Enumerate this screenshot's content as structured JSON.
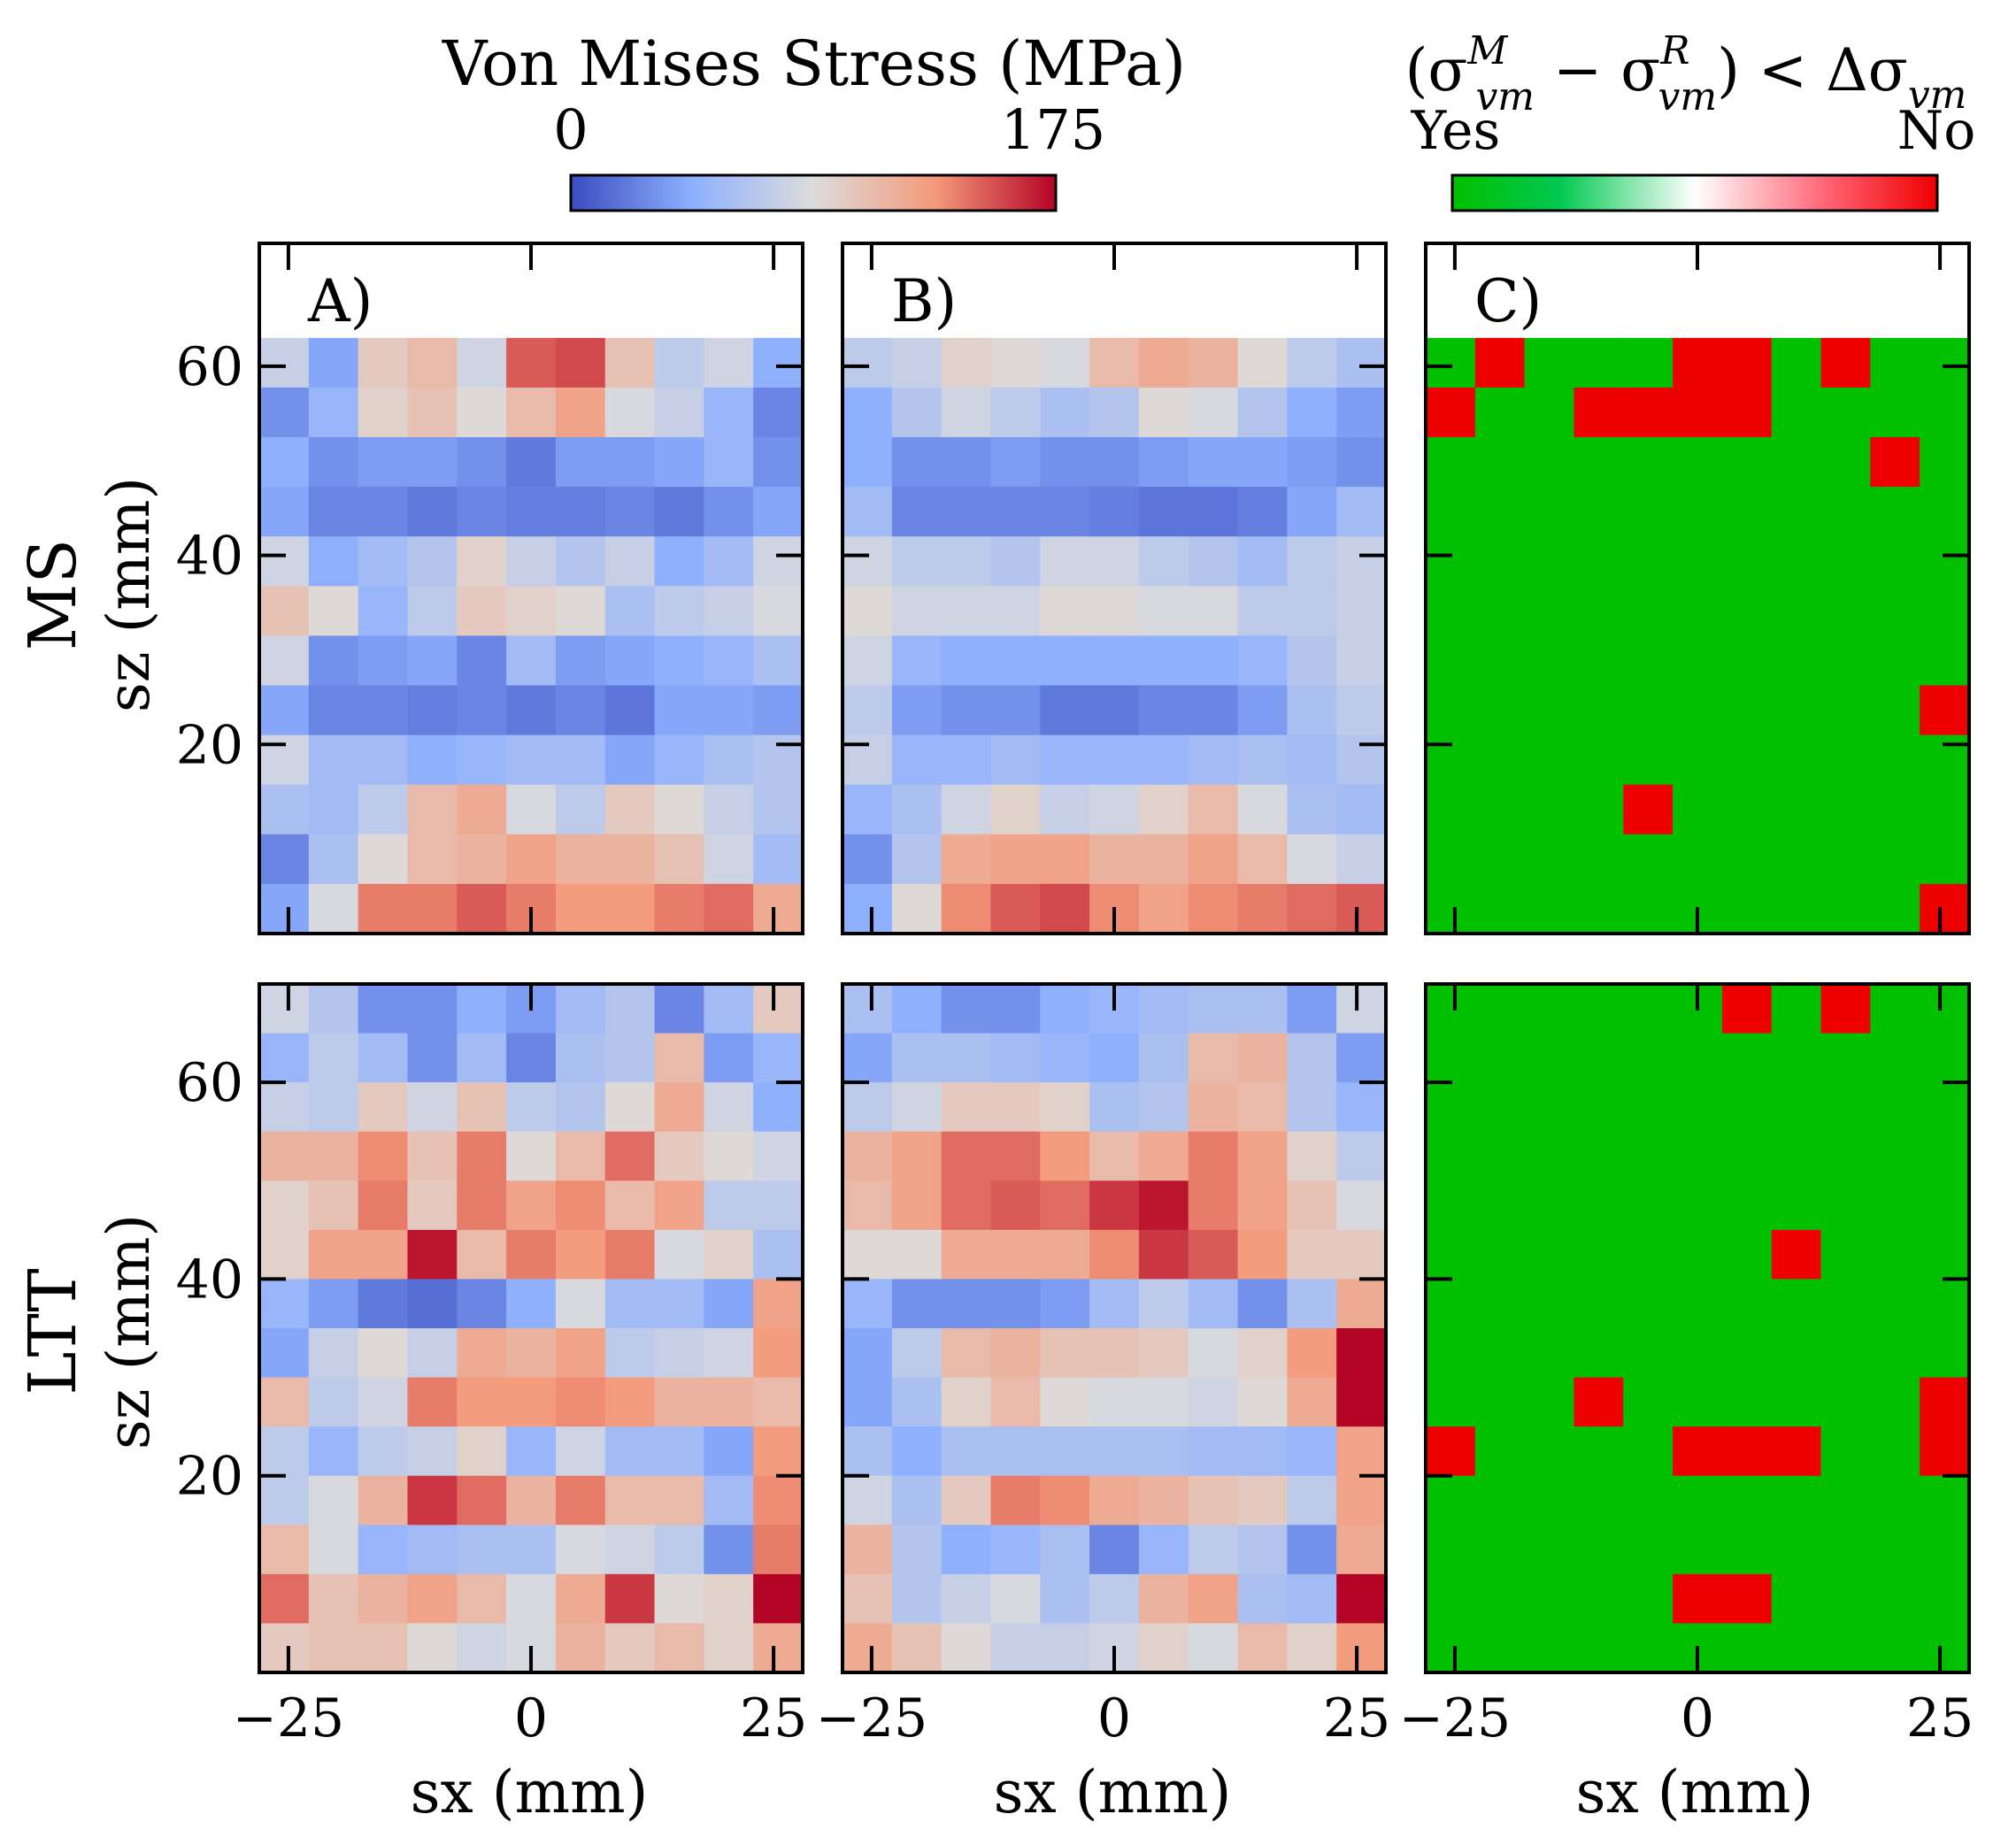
{
  "chart_data": {
    "type": "heatmap",
    "colorbar_stress": {
      "title": "Von Mises Stress (MPa)",
      "min_label": "0",
      "max_label": "175",
      "range": [
        0,
        175
      ]
    },
    "colorbar_diff": {
      "title_main": "(σ",
      "title_sup1": "M",
      "title_sub1": "vm",
      "title_mid": " − σ",
      "title_sup2": "R",
      "title_sub2": "vm",
      "title_tail": ") < Δσ",
      "title_sub3": "vm",
      "yes_label": "Yes",
      "no_label": "No"
    },
    "colors": {
      "blue": "#3b4cc0",
      "neutral": "#dddcdc",
      "red": "#b40426",
      "green": "#00c000",
      "flag_red": "#ee0000"
    },
    "x_axis": {
      "label": "sx (mm)",
      "range": [
        -28,
        28
      ],
      "ticks": [
        -25,
        0,
        25
      ],
      "tick_labels": [
        "−25",
        "0",
        "25"
      ]
    },
    "z_axis": {
      "label": "sz (mm)",
      "ticks": [
        20,
        40,
        60
      ],
      "tick_labels": [
        "20",
        "40",
        "60"
      ]
    },
    "rows": [
      {
        "name": "MS",
        "z_range": [
          0,
          73
        ],
        "data_z_top": 63
      },
      {
        "name": "LTT",
        "z_range": [
          0,
          70
        ],
        "data_z_top": 70
      }
    ],
    "panels": [
      {
        "id": "A",
        "label": "A)",
        "row": 0,
        "type": "stress",
        "grid": [
          [
            75,
            40,
            100,
            110,
            80,
            150,
            155,
            105,
            70,
            80,
            45
          ],
          [
            30,
            50,
            95,
            105,
            90,
            110,
            125,
            85,
            75,
            50,
            25
          ],
          [
            45,
            30,
            35,
            35,
            30,
            20,
            35,
            35,
            40,
            50,
            30
          ],
          [
            40,
            25,
            25,
            20,
            25,
            22,
            22,
            25,
            20,
            30,
            40
          ],
          [
            80,
            45,
            55,
            65,
            95,
            75,
            65,
            75,
            45,
            55,
            80
          ],
          [
            105,
            90,
            50,
            70,
            100,
            95,
            90,
            60,
            70,
            75,
            85
          ],
          [
            80,
            30,
            35,
            40,
            25,
            55,
            35,
            40,
            45,
            50,
            60
          ],
          [
            40,
            25,
            25,
            22,
            25,
            20,
            25,
            18,
            40,
            40,
            35
          ],
          [
            80,
            55,
            55,
            45,
            50,
            55,
            55,
            40,
            50,
            60,
            65
          ],
          [
            60,
            55,
            70,
            110,
            120,
            85,
            70,
            100,
            90,
            75,
            65
          ],
          [
            25,
            60,
            90,
            110,
            115,
            125,
            115,
            115,
            105,
            80,
            55
          ],
          [
            40,
            85,
            140,
            140,
            150,
            140,
            130,
            130,
            140,
            145,
            120
          ]
        ]
      },
      {
        "id": "B",
        "label": "B)",
        "row": 0,
        "type": "stress",
        "grid": [
          [
            70,
            75,
            95,
            90,
            85,
            110,
            120,
            115,
            90,
            70,
            60
          ],
          [
            45,
            65,
            80,
            70,
            60,
            65,
            90,
            85,
            65,
            45,
            35
          ],
          [
            45,
            30,
            30,
            35,
            30,
            30,
            35,
            40,
            40,
            35,
            30
          ],
          [
            55,
            25,
            25,
            25,
            25,
            22,
            18,
            18,
            22,
            40,
            55
          ],
          [
            80,
            70,
            70,
            65,
            80,
            80,
            70,
            65,
            55,
            70,
            75
          ],
          [
            90,
            80,
            80,
            80,
            90,
            90,
            85,
            85,
            70,
            70,
            75
          ],
          [
            80,
            50,
            45,
            45,
            45,
            45,
            45,
            45,
            50,
            65,
            75
          ],
          [
            70,
            35,
            30,
            30,
            20,
            20,
            25,
            25,
            35,
            60,
            70
          ],
          [
            75,
            50,
            50,
            55,
            50,
            50,
            50,
            55,
            60,
            55,
            65
          ],
          [
            50,
            60,
            80,
            95,
            75,
            80,
            95,
            110,
            85,
            60,
            55
          ],
          [
            30,
            65,
            120,
            125,
            125,
            115,
            115,
            125,
            110,
            85,
            75
          ],
          [
            45,
            90,
            135,
            150,
            155,
            135,
            125,
            135,
            140,
            145,
            150
          ]
        ]
      },
      {
        "id": "C",
        "label": "C)",
        "row": 0,
        "type": "flag",
        "grid": [
          [
            0,
            1,
            0,
            0,
            0,
            1,
            1,
            0,
            1,
            0,
            0
          ],
          [
            1,
            0,
            0,
            1,
            1,
            1,
            1,
            0,
            0,
            0,
            0
          ],
          [
            0,
            0,
            0,
            0,
            0,
            0,
            0,
            0,
            0,
            1,
            0
          ],
          [
            0,
            0,
            0,
            0,
            0,
            0,
            0,
            0,
            0,
            0,
            0
          ],
          [
            0,
            0,
            0,
            0,
            0,
            0,
            0,
            0,
            0,
            0,
            0
          ],
          [
            0,
            0,
            0,
            0,
            0,
            0,
            0,
            0,
            0,
            0,
            0
          ],
          [
            0,
            0,
            0,
            0,
            0,
            0,
            0,
            0,
            0,
            0,
            0
          ],
          [
            0,
            0,
            0,
            0,
            0,
            0,
            0,
            0,
            0,
            0,
            1
          ],
          [
            0,
            0,
            0,
            0,
            0,
            0,
            0,
            0,
            0,
            0,
            0
          ],
          [
            0,
            0,
            0,
            0,
            1,
            0,
            0,
            0,
            0,
            0,
            0
          ],
          [
            0,
            0,
            0,
            0,
            0,
            0,
            0,
            0,
            0,
            0,
            0
          ],
          [
            0,
            0,
            0,
            0,
            0,
            0,
            0,
            0,
            0,
            0,
            1
          ]
        ]
      },
      {
        "id": "D",
        "label": "",
        "row": 1,
        "type": "stress",
        "grid": [
          [
            80,
            65,
            30,
            30,
            45,
            35,
            55,
            65,
            25,
            55,
            100
          ],
          [
            50,
            70,
            55,
            30,
            55,
            25,
            60,
            65,
            110,
            35,
            50
          ],
          [
            75,
            70,
            100,
            80,
            105,
            70,
            65,
            90,
            120,
            80,
            45
          ],
          [
            115,
            115,
            135,
            105,
            140,
            90,
            110,
            145,
            100,
            90,
            80
          ],
          [
            95,
            105,
            140,
            100,
            140,
            125,
            135,
            110,
            125,
            70,
            70
          ],
          [
            95,
            125,
            125,
            170,
            110,
            140,
            130,
            140,
            85,
            95,
            60
          ],
          [
            50,
            35,
            20,
            15,
            25,
            45,
            85,
            55,
            55,
            40,
            125
          ],
          [
            40,
            75,
            90,
            75,
            120,
            115,
            125,
            70,
            75,
            80,
            130
          ],
          [
            110,
            70,
            80,
            140,
            130,
            130,
            135,
            130,
            115,
            115,
            110
          ],
          [
            70,
            50,
            70,
            75,
            95,
            50,
            80,
            55,
            55,
            40,
            130
          ],
          [
            70,
            85,
            115,
            160,
            145,
            115,
            140,
            110,
            110,
            55,
            135
          ],
          [
            110,
            85,
            50,
            55,
            60,
            60,
            85,
            80,
            70,
            30,
            140
          ],
          [
            145,
            105,
            115,
            125,
            110,
            85,
            120,
            160,
            90,
            95,
            175
          ],
          [
            100,
            105,
            105,
            90,
            80,
            85,
            115,
            100,
            110,
            95,
            120
          ]
        ]
      },
      {
        "id": "E",
        "label": "",
        "row": 1,
        "type": "stress",
        "grid": [
          [
            60,
            45,
            30,
            30,
            45,
            50,
            55,
            60,
            60,
            35,
            80
          ],
          [
            40,
            60,
            60,
            55,
            50,
            45,
            60,
            110,
            115,
            65,
            35
          ],
          [
            70,
            80,
            100,
            100,
            95,
            60,
            65,
            115,
            110,
            65,
            50
          ],
          [
            115,
            125,
            145,
            145,
            130,
            110,
            120,
            140,
            125,
            95,
            70
          ],
          [
            110,
            125,
            145,
            150,
            145,
            160,
            170,
            140,
            125,
            105,
            85
          ],
          [
            90,
            90,
            120,
            120,
            120,
            135,
            160,
            150,
            130,
            100,
            100
          ],
          [
            50,
            30,
            30,
            30,
            35,
            55,
            70,
            55,
            30,
            60,
            120
          ],
          [
            40,
            70,
            110,
            115,
            105,
            105,
            100,
            85,
            95,
            130,
            175
          ],
          [
            40,
            60,
            95,
            110,
            90,
            85,
            85,
            80,
            90,
            120,
            175
          ],
          [
            60,
            45,
            60,
            60,
            60,
            60,
            60,
            55,
            55,
            50,
            125
          ],
          [
            80,
            60,
            100,
            140,
            135,
            120,
            115,
            105,
            100,
            70,
            125
          ],
          [
            115,
            65,
            45,
            50,
            60,
            25,
            50,
            70,
            65,
            30,
            120
          ],
          [
            105,
            65,
            75,
            85,
            60,
            70,
            115,
            125,
            60,
            55,
            175
          ],
          [
            120,
            105,
            90,
            75,
            75,
            80,
            95,
            85,
            110,
            95,
            130
          ]
        ]
      },
      {
        "id": "F",
        "label": "",
        "row": 1,
        "type": "flag",
        "grid": [
          [
            0,
            0,
            0,
            0,
            0,
            0,
            1,
            0,
            1,
            0,
            0
          ],
          [
            0,
            0,
            0,
            0,
            0,
            0,
            0,
            0,
            0,
            0,
            0
          ],
          [
            0,
            0,
            0,
            0,
            0,
            0,
            0,
            0,
            0,
            0,
            0
          ],
          [
            0,
            0,
            0,
            0,
            0,
            0,
            0,
            0,
            0,
            0,
            0
          ],
          [
            0,
            0,
            0,
            0,
            0,
            0,
            0,
            0,
            0,
            0,
            0
          ],
          [
            0,
            0,
            0,
            0,
            0,
            0,
            0,
            1,
            0,
            0,
            0
          ],
          [
            0,
            0,
            0,
            0,
            0,
            0,
            0,
            0,
            0,
            0,
            0
          ],
          [
            0,
            0,
            0,
            0,
            0,
            0,
            0,
            0,
            0,
            0,
            0
          ],
          [
            0,
            0,
            0,
            1,
            0,
            0,
            0,
            0,
            0,
            0,
            1
          ],
          [
            1,
            0,
            0,
            0,
            0,
            1,
            1,
            1,
            0,
            0,
            1
          ],
          [
            0,
            0,
            0,
            0,
            0,
            0,
            0,
            0,
            0,
            0,
            0
          ],
          [
            0,
            0,
            0,
            0,
            0,
            0,
            0,
            0,
            0,
            0,
            0
          ],
          [
            0,
            0,
            0,
            0,
            0,
            1,
            1,
            0,
            0,
            0,
            0
          ],
          [
            0,
            0,
            0,
            0,
            0,
            0,
            0,
            0,
            0,
            0,
            0
          ]
        ]
      }
    ]
  }
}
